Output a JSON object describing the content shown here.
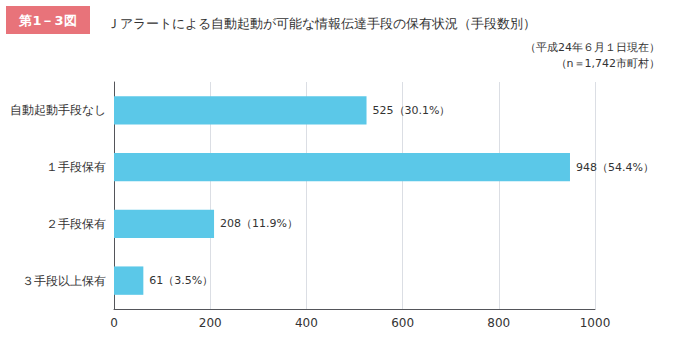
{
  "chart_data": {
    "type": "bar",
    "orientation": "horizontal",
    "title": "Ｊアラートによる自動起動が可能な情報伝達手段の保有状況（手段数別）",
    "annotations": [
      "第1－3図"
    ],
    "subtitle": [
      "（平成24年６月１日現在）",
      "（n＝1,742市町村）"
    ],
    "categories": [
      "３手段以上保有",
      "２手段保有",
      "１手段保有",
      "自動起動手段なし"
    ],
    "values": [
      61,
      208,
      948,
      525
    ],
    "value_labels": [
      "61（3.5%）",
      "208（11.9%）",
      "948（54.4%）",
      "525（30.1%）"
    ],
    "data_labels": true,
    "color": "#5bc8e8",
    "xlim": [
      0,
      1000
    ],
    "xticks": [
      0,
      200,
      400,
      600,
      800,
      1000
    ],
    "grid": true
  }
}
